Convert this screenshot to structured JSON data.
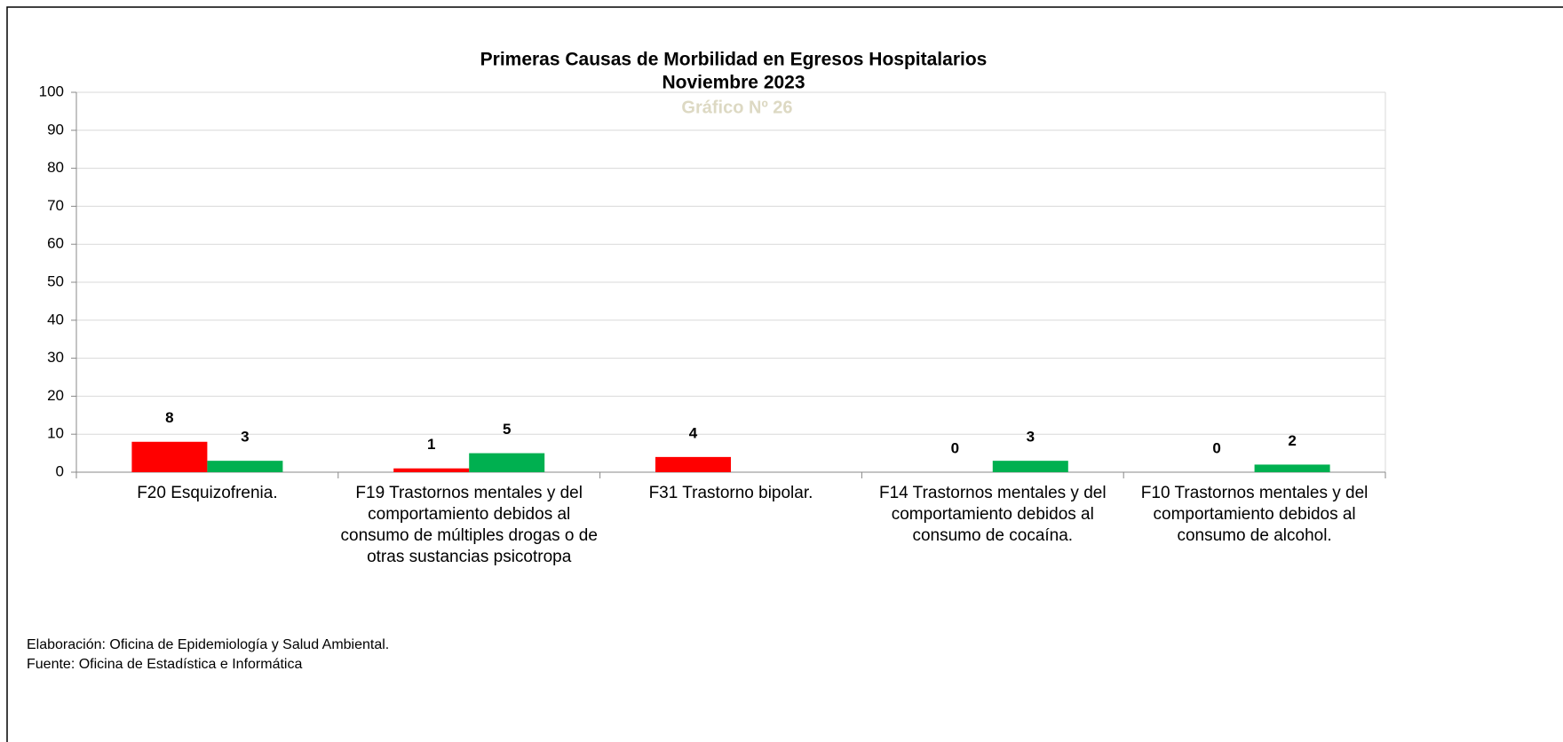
{
  "chart_data": {
    "type": "bar",
    "title": "Primeras Causas de Morbilidad en Egresos Hospitalarios",
    "subtitle": "Noviembre 2023",
    "annotation": "Gráfico Nº 26",
    "categories": [
      "F20 Esquizofrenia.",
      "F19 Trastornos mentales y del comportamiento debidos al consumo de múltiples drogas o de otras sustancias psicotropa",
      "F31 Trastorno bipolar.",
      "F14 Trastornos mentales y del comportamiento debidos al consumo de cocaína.",
      "F10 Trastornos mentales y del comportamiento debidos al consumo de alcohol."
    ],
    "series": [
      {
        "color": "#ff0000",
        "values": [
          8,
          1,
          4,
          0,
          0
        ]
      },
      {
        "color": "#00b050",
        "values": [
          3,
          5,
          null,
          3,
          2
        ]
      }
    ],
    "ylim": [
      0,
      100
    ],
    "yticks": [
      0,
      10,
      20,
      30,
      40,
      50,
      60,
      70,
      80,
      90,
      100
    ],
    "grid": true,
    "footnotes": [
      "Elaboración: Oficina de Epidemiología y Salud Ambiental.",
      "Fuente:  Oficina de Estadística e Informática"
    ]
  }
}
